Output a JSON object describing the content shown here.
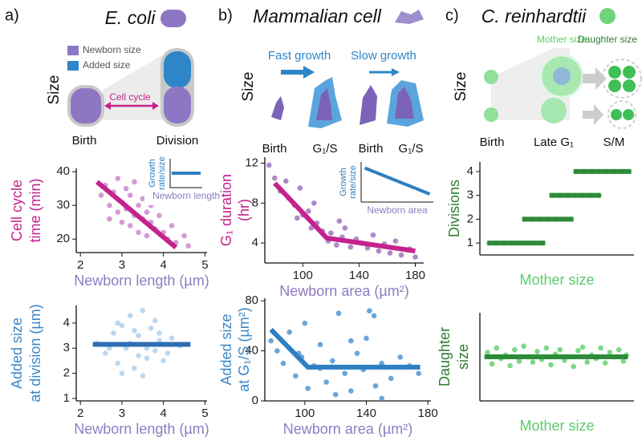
{
  "panels": {
    "a": {
      "label": "a)",
      "title": "E. coli",
      "legend": [
        "Newborn size",
        "Added size"
      ],
      "size": "Size",
      "arrow": "Cell cycle",
      "stages": [
        "Birth",
        "Division"
      ]
    },
    "b": {
      "label": "b)",
      "title": "Mammalian cell",
      "conditions": [
        "Fast growth",
        "Slow growth"
      ],
      "size": "Size",
      "stages": [
        "Birth",
        "G₁/S",
        "Birth",
        "G₁/S"
      ]
    },
    "c": {
      "label": "c)",
      "title": "C. reinhardtii",
      "cells": [
        "Mother size",
        "Daughter size"
      ],
      "size": "Size",
      "stages": [
        "Birth",
        "Late G₁",
        "S/M"
      ]
    }
  },
  "chart_data": [
    {
      "type": "scatter",
      "xlabel": "Newborn length (µm)",
      "ylabel": [
        "Cell cycle",
        "time (min)"
      ],
      "xlabel_color": "#8e7cc3",
      "ylabel_color": "#c4238e",
      "xlim": [
        1.9,
        5.05
      ],
      "ylim": [
        16,
        41
      ],
      "xticks": [
        2,
        3,
        4,
        5
      ],
      "yticks": [
        20,
        30,
        40
      ],
      "points": {
        "color": "#cf8fd0",
        "x": [
          2.5,
          2.6,
          2.7,
          2.8,
          2.9,
          3.0,
          3.0,
          3.1,
          3.2,
          3.2,
          3.3,
          3.4,
          3.4,
          3.5,
          3.6,
          3.6,
          3.7,
          3.8,
          3.9,
          4.0,
          4.1,
          4.2,
          4.3,
          4.5,
          4.6,
          2.9,
          3.1,
          3.3,
          3.5,
          3.7,
          2.7,
          3.9
        ],
        "y": [
          33,
          36,
          30,
          34,
          28,
          31,
          25,
          29,
          33,
          24,
          27,
          30,
          22,
          26,
          28,
          21,
          25,
          23,
          27,
          22,
          20,
          24,
          19,
          21,
          18,
          38,
          35,
          37,
          32,
          30,
          26,
          31
        ]
      },
      "fits": [
        {
          "color": "#c4238e",
          "x": [
            2.4,
            4.3
          ],
          "y": [
            37,
            17.5
          ]
        }
      ],
      "inset": {
        "xlabel": "Newborn length",
        "ylabel": [
          "Growth",
          "rate/size"
        ],
        "color": "#2e7fc1",
        "xlim": [
          0,
          1
        ],
        "ylim": [
          0,
          1
        ],
        "x": [
          0.05,
          0.95
        ],
        "y": [
          0.5,
          0.5
        ]
      }
    },
    {
      "type": "scatter",
      "xlabel": "Newborn length (µm)",
      "ylabel": [
        "Added size",
        "at division (µm)"
      ],
      "xlabel_color": "#8e7cc3",
      "ylabel_color": "#3a87c8",
      "xlim": [
        1.9,
        5.05
      ],
      "ylim": [
        0.9,
        4.7
      ],
      "xticks": [
        2,
        3,
        4,
        5
      ],
      "yticks": [
        1,
        2,
        3,
        4
      ],
      "points": {
        "color": "#b5d3ee",
        "x": [
          2.4,
          2.6,
          2.8,
          2.9,
          3.0,
          3.1,
          3.2,
          3.3,
          3.4,
          3.5,
          3.6,
          3.7,
          3.8,
          3.9,
          4.0,
          4.2,
          4.4,
          2.7,
          3.0,
          3.3,
          3.5,
          3.8,
          4.1,
          3.2,
          3.6,
          2.9,
          3.4,
          3.9
        ],
        "y": [
          3.2,
          2.8,
          3.6,
          2.4,
          3.9,
          3.0,
          4.3,
          2.2,
          3.5,
          4.5,
          2.6,
          3.8,
          2.9,
          3.3,
          2.5,
          3.4,
          3.1,
          3.0,
          2.0,
          3.7,
          1.9,
          4.1,
          2.8,
          3.2,
          3.0,
          4.0,
          2.7,
          3.6
        ]
      },
      "fits": [
        {
          "color": "#2e6db4",
          "x": [
            2.3,
            4.65
          ],
          "y": [
            3.15,
            3.15
          ]
        }
      ]
    },
    {
      "type": "scatter",
      "xlabel": "Newborn area (µm²)",
      "ylabel": [
        "G₁ duration",
        "(hr)"
      ],
      "xlabel_color": "#8e7cc3",
      "ylabel_color": "#c4238e",
      "xlim": [
        73,
        186
      ],
      "ylim": [
        2,
        12.6
      ],
      "xticks": [
        100,
        140,
        180
      ],
      "yticks": [
        4,
        8,
        12
      ],
      "points": {
        "color": "#a57cc0",
        "x": [
          76,
          80,
          84,
          88,
          90,
          94,
          98,
          100,
          104,
          106,
          110,
          114,
          118,
          120,
          124,
          128,
          130,
          134,
          138,
          142,
          146,
          150,
          154,
          158,
          162,
          166,
          170,
          176,
          180,
          96,
          108,
          126
        ],
        "y": [
          11.8,
          10.5,
          9.2,
          10.2,
          8.5,
          7.8,
          9.5,
          6.8,
          7.2,
          5.5,
          6.0,
          5.2,
          4.2,
          5.0,
          3.8,
          4.6,
          5.5,
          3.6,
          4.4,
          4.0,
          3.5,
          4.8,
          3.2,
          3.9,
          3.0,
          4.2,
          2.8,
          3.4,
          2.6,
          6.5,
          8.0,
          6.2
        ]
      },
      "fits": [
        {
          "color": "#c4238e",
          "x": [
            80,
            117,
            180
          ],
          "y": [
            10,
            4.5,
            3.2
          ]
        }
      ],
      "inset": {
        "xlabel": "Newborn area",
        "ylabel": [
          "Growth",
          "rate/size"
        ],
        "color": "#2e7fc1",
        "xlim": [
          0,
          1
        ],
        "ylim": [
          0,
          1
        ],
        "x": [
          0.05,
          0.95
        ],
        "y": [
          0.85,
          0.2
        ]
      }
    },
    {
      "type": "scatter",
      "xlabel": "Newborn area (µm²)",
      "ylabel": [
        "Added size",
        "at G₁/S (µm²)"
      ],
      "xlabel_color": "#8e7cc3",
      "ylabel_color": "#3a87c8",
      "xlim": [
        74,
        182
      ],
      "ylim": [
        0,
        82
      ],
      "xticks": [
        100,
        140,
        180
      ],
      "yticks": [
        0,
        40,
        80
      ],
      "points": {
        "color": "#5b9bd5",
        "x": [
          78,
          82,
          86,
          90,
          94,
          98,
          102,
          106,
          110,
          114,
          118,
          122,
          126,
          130,
          134,
          138,
          142,
          146,
          150,
          156,
          162,
          168,
          174,
          100,
          120,
          140,
          110,
          130,
          96,
          150,
          145
        ],
        "y": [
          48,
          40,
          30,
          55,
          20,
          35,
          10,
          28,
          45,
          15,
          32,
          70,
          22,
          8,
          38,
          25,
          72,
          12,
          30,
          18,
          35,
          28,
          22,
          62,
          5,
          50,
          26,
          48,
          38,
          2,
          68
        ]
      },
      "fits": [
        {
          "color": "#2e7fc1",
          "x": [
            78,
            102,
            175
          ],
          "y": [
            57,
            27,
            27
          ]
        }
      ]
    },
    {
      "type": "scatter",
      "xlabel": "Mother size",
      "ylabel": [
        "Divisions"
      ],
      "xlabel_color": "#5ccc6a",
      "ylabel_color": "#2e7d32",
      "xlim": [
        0,
        102
      ],
      "ylim": [
        0.5,
        4.4
      ],
      "yticks": [
        1,
        2,
        3,
        4
      ],
      "points": {
        "color": "#6fd37b",
        "x": [
          6,
          11,
          16,
          21,
          26,
          31,
          36,
          42,
          30,
          35,
          40,
          45,
          50,
          55,
          60,
          48,
          53,
          58,
          63,
          68,
          73,
          79,
          64,
          69,
          74,
          79,
          84,
          89,
          94,
          99
        ],
        "y": [
          1,
          1,
          1,
          1,
          1,
          1,
          1,
          1,
          2,
          2,
          2,
          2,
          2,
          2,
          2,
          3,
          3,
          3,
          3,
          3,
          3,
          3,
          4,
          4,
          4,
          4,
          4,
          4,
          4,
          4
        ]
      },
      "fits": [
        {
          "color": "#2e8b3a",
          "x": [
            5,
            43
          ],
          "y": [
            1,
            1
          ]
        },
        {
          "color": "#2e8b3a",
          "x": [
            28,
            62
          ],
          "y": [
            2,
            2
          ]
        },
        {
          "color": "#2e8b3a",
          "x": [
            46,
            80
          ],
          "y": [
            3,
            3
          ]
        },
        {
          "color": "#2e8b3a",
          "x": [
            62,
            100
          ],
          "y": [
            4,
            4
          ]
        }
      ]
    },
    {
      "type": "scatter",
      "xlabel": "Mother size",
      "ylabel": [
        "Daughter",
        "size"
      ],
      "xlabel_color": "#5ccc6a",
      "ylabel_color": "#2e7d32",
      "xlim": [
        0,
        102
      ],
      "ylim": [
        0,
        1
      ],
      "points": {
        "color": "#6fd37b",
        "x": [
          5,
          8,
          11,
          14,
          17,
          20,
          23,
          26,
          29,
          32,
          35,
          38,
          41,
          44,
          47,
          50,
          53,
          56,
          59,
          62,
          65,
          68,
          71,
          74,
          77,
          80,
          83,
          86,
          89,
          92,
          95,
          97
        ],
        "y": [
          0.55,
          0.42,
          0.6,
          0.48,
          0.52,
          0.4,
          0.58,
          0.45,
          0.62,
          0.5,
          0.44,
          0.56,
          0.47,
          0.6,
          0.41,
          0.53,
          0.58,
          0.46,
          0.5,
          0.39,
          0.57,
          0.61,
          0.44,
          0.52,
          0.48,
          0.6,
          0.43,
          0.55,
          0.5,
          0.58,
          0.45,
          0.52
        ]
      },
      "fits": [
        {
          "color": "#2e8b3a",
          "x": [
            3,
            98
          ],
          "y": [
            0.5,
            0.5
          ]
        }
      ]
    }
  ]
}
